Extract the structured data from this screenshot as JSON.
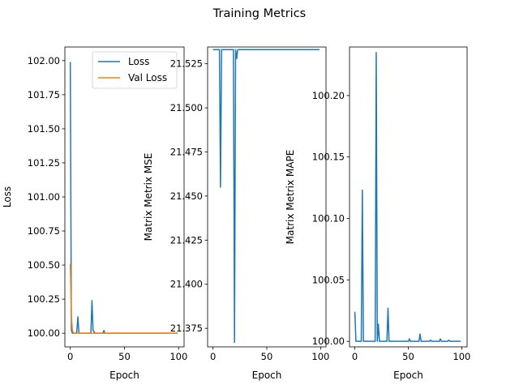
{
  "figure": {
    "title": "Training Metrics"
  },
  "chart_data": [
    {
      "type": "line",
      "xlabel": "Epoch",
      "ylabel": "Loss",
      "xlim": [
        -5,
        105
      ],
      "ylim": [
        99.9,
        102.1
      ],
      "xticks": [
        "0",
        "50",
        "100"
      ],
      "yticks": [
        "100.00",
        "100.25",
        "100.50",
        "100.75",
        "101.00",
        "101.25",
        "101.50",
        "101.75",
        "102.00"
      ],
      "legend": {
        "placement": "top-right",
        "entries": [
          "Loss",
          "Val Loss"
        ]
      },
      "grid": false,
      "series": [
        {
          "name": "Loss",
          "color": "#1f77b4",
          "points": [
            [
              0,
              101.99
            ],
            [
              1,
              100.02
            ],
            [
              2,
              100.0
            ],
            [
              3,
              100.0
            ],
            [
              4,
              100.0
            ],
            [
              5,
              100.0
            ],
            [
              6,
              100.01
            ],
            [
              7,
              100.12
            ],
            [
              8,
              100.0
            ],
            [
              9,
              100.0
            ],
            [
              10,
              100.0
            ],
            [
              15,
              100.0
            ],
            [
              18,
              100.0
            ],
            [
              19,
              100.0
            ],
            [
              20,
              100.24
            ],
            [
              21,
              100.02
            ],
            [
              22,
              100.01
            ],
            [
              23,
              100.0
            ],
            [
              30,
              100.0
            ],
            [
              31,
              100.02
            ],
            [
              32,
              100.0
            ],
            [
              40,
              100.0
            ],
            [
              50,
              100.0
            ],
            [
              62,
              100.0
            ],
            [
              70,
              100.0
            ],
            [
              80,
              100.0
            ],
            [
              90,
              100.0
            ],
            [
              99,
              100.0
            ]
          ]
        },
        {
          "name": "Val Loss",
          "color": "#ff7f0e",
          "points": [
            [
              0,
              100.51
            ],
            [
              1,
              100.12
            ],
            [
              2,
              100.02
            ],
            [
              3,
              100.0
            ],
            [
              5,
              100.0
            ],
            [
              10,
              100.0
            ],
            [
              20,
              100.0
            ],
            [
              30,
              100.0
            ],
            [
              40,
              100.0
            ],
            [
              50,
              100.0
            ],
            [
              60,
              100.0
            ],
            [
              70,
              100.0
            ],
            [
              80,
              100.0
            ],
            [
              90,
              100.0
            ],
            [
              99,
              100.0
            ]
          ]
        }
      ]
    },
    {
      "type": "line",
      "xlabel": "Epoch",
      "ylabel": "Matrix Metrix MSE",
      "xlim": [
        -5,
        105
      ],
      "ylim": [
        21.3645,
        21.5345
      ],
      "xticks": [
        "0",
        "50",
        "100"
      ],
      "yticks": [
        "21.375",
        "21.400",
        "21.425",
        "21.450",
        "21.475",
        "21.500",
        "21.525"
      ],
      "grid": false,
      "series": [
        {
          "color": "#1f77b4",
          "points": [
            [
              0,
              21.533
            ],
            [
              6,
              21.533
            ],
            [
              7,
              21.455
            ],
            [
              8,
              21.533
            ],
            [
              19,
              21.533
            ],
            [
              20,
              21.367
            ],
            [
              21,
              21.533
            ],
            [
              22,
              21.528
            ],
            [
              23,
              21.533
            ],
            [
              30,
              21.533
            ],
            [
              40,
              21.533
            ],
            [
              50,
              21.533
            ],
            [
              60,
              21.533
            ],
            [
              70,
              21.533
            ],
            [
              80,
              21.533
            ],
            [
              90,
              21.533
            ],
            [
              99,
              21.533
            ]
          ]
        }
      ]
    },
    {
      "type": "line",
      "xlabel": "Epoch",
      "ylabel": "Matrix Metrix MAPE",
      "xlim": [
        -5,
        105
      ],
      "ylim": [
        99.9955,
        100.2395
      ],
      "xticks": [
        "0",
        "50",
        "100"
      ],
      "yticks": [
        "100.00",
        "100.05",
        "100.10",
        "100.15",
        "100.20"
      ],
      "grid": false,
      "series": [
        {
          "color": "#1f77b4",
          "points": [
            [
              0,
              100.024
            ],
            [
              1,
              100.0
            ],
            [
              6,
              100.0
            ],
            [
              7,
              100.123
            ],
            [
              8,
              100.0
            ],
            [
              18,
              100.0
            ],
            [
              19,
              100.0
            ],
            [
              20,
              100.235
            ],
            [
              21,
              100.0
            ],
            [
              22,
              100.014
            ],
            [
              23,
              100.0
            ],
            [
              30,
              100.0
            ],
            [
              31,
              100.027
            ],
            [
              32,
              100.0
            ],
            [
              50,
              100.0
            ],
            [
              51,
              100.002
            ],
            [
              52,
              100.0
            ],
            [
              60,
              100.0
            ],
            [
              61,
              100.006
            ],
            [
              62,
              100.0
            ],
            [
              70,
              100.0
            ],
            [
              71,
              100.001
            ],
            [
              72,
              100.0
            ],
            [
              79,
              100.0
            ],
            [
              80,
              100.002
            ],
            [
              81,
              100.0
            ],
            [
              87,
              100.0
            ],
            [
              88,
              100.001
            ],
            [
              89,
              100.0
            ],
            [
              99,
              100.0
            ]
          ]
        }
      ]
    }
  ]
}
